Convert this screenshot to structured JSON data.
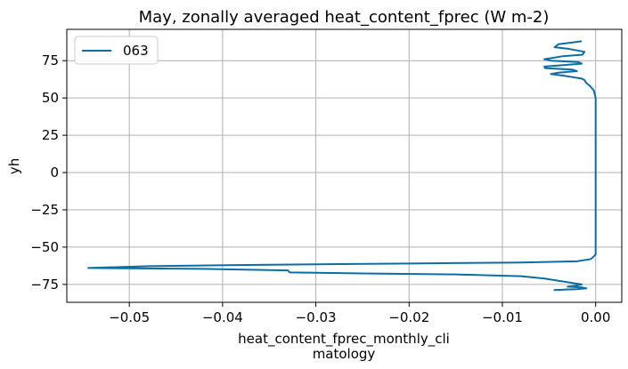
{
  "chart_data": {
    "type": "line",
    "title": "May, zonally averaged heat_content_fprec (W m-2)",
    "xlabel_lines": [
      "heat_content_fprec_monthly_cli",
      "matology"
    ],
    "ylabel": "yh",
    "xlim": [
      -0.0567,
      0.0028
    ],
    "ylim": [
      -87,
      96
    ],
    "x_ticks": [
      -0.05,
      -0.04,
      -0.03,
      -0.02,
      -0.01,
      0.0
    ],
    "x_tick_labels": [
      "−0.05",
      "−0.04",
      "−0.03",
      "−0.02",
      "−0.01",
      "0.00"
    ],
    "y_ticks": [
      -75,
      -50,
      -25,
      0,
      25,
      50,
      75
    ],
    "y_tick_labels": [
      "−75",
      "−50",
      "−25",
      "0",
      "25",
      "50",
      "75"
    ],
    "grid": true,
    "legend": {
      "placement": "top-left",
      "entries": [
        "063"
      ]
    },
    "series": [
      {
        "name": "063",
        "color": "#0a6ea4",
        "points": [
          [
            -0.0015,
            88
          ],
          [
            -0.004,
            86
          ],
          [
            -0.0044,
            84
          ],
          [
            -0.003,
            83
          ],
          [
            -0.0012,
            81
          ],
          [
            -0.0014,
            79
          ],
          [
            -0.0035,
            78
          ],
          [
            -0.0055,
            76
          ],
          [
            -0.0048,
            75
          ],
          [
            -0.0018,
            74
          ],
          [
            -0.0015,
            73
          ],
          [
            -0.0035,
            72
          ],
          [
            -0.0055,
            71
          ],
          [
            -0.0054,
            70
          ],
          [
            -0.0025,
            69
          ],
          [
            -0.002,
            68
          ],
          [
            -0.004,
            67
          ],
          [
            -0.0048,
            66
          ],
          [
            -0.0035,
            65
          ],
          [
            -0.0025,
            64
          ],
          [
            -0.0015,
            63
          ],
          [
            -0.0012,
            62
          ],
          [
            -0.001,
            60
          ],
          [
            -0.0006,
            58
          ],
          [
            -0.0002,
            55
          ],
          [
            0.0,
            50
          ],
          [
            0.0,
            40
          ],
          [
            0.0,
            0
          ],
          [
            0.0,
            -40
          ],
          [
            0.0,
            -55
          ],
          [
            -0.0005,
            -58
          ],
          [
            -0.002,
            -59.5
          ],
          [
            -0.008,
            -60.3
          ],
          [
            -0.02,
            -61
          ],
          [
            -0.035,
            -61.8
          ],
          [
            -0.048,
            -62.8
          ],
          [
            -0.0544,
            -64
          ],
          [
            -0.042,
            -64.6
          ],
          [
            -0.033,
            -65.6
          ],
          [
            -0.0328,
            -67
          ],
          [
            -0.025,
            -67.6
          ],
          [
            -0.015,
            -68.3
          ],
          [
            -0.008,
            -69.5
          ],
          [
            -0.0055,
            -71
          ],
          [
            -0.004,
            -72.5
          ],
          [
            -0.0025,
            -74
          ],
          [
            -0.0015,
            -75
          ],
          [
            -0.0022,
            -76
          ],
          [
            -0.003,
            -76.5
          ],
          [
            -0.0015,
            -77
          ],
          [
            -0.001,
            -77.6
          ],
          [
            -0.002,
            -78.2
          ],
          [
            -0.0045,
            -78.8
          ]
        ]
      }
    ]
  }
}
